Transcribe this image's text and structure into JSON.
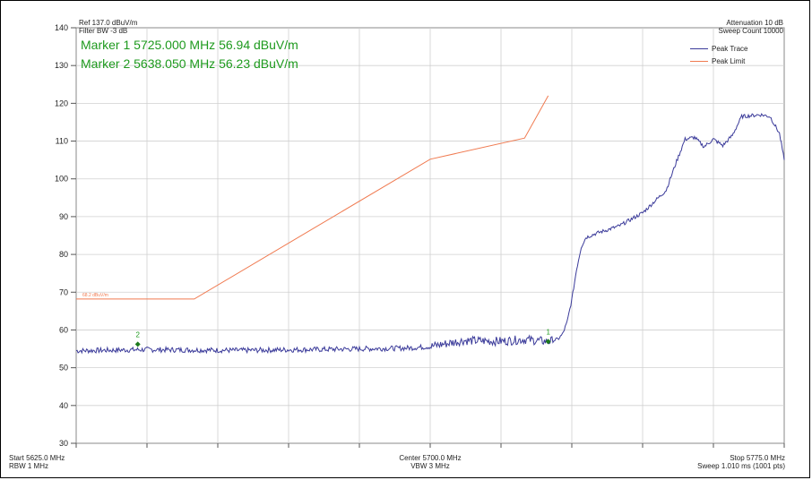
{
  "header": {
    "ref_level": "Ref 137.0 dBuV/m",
    "filter_bw": "Filter BW -3 dB",
    "attenuation": "Attenuation 10 dB",
    "sweep_count": "Sweep Count 10000"
  },
  "markers": [
    {
      "label": "Marker 1 5725.000 MHz 56.94 dBuV/m",
      "id": "1",
      "freq": 5725.0,
      "level": 56.94
    },
    {
      "label": "Marker 2 5638.050 MHz 56.23 dBuV/m",
      "id": "2",
      "freq": 5638.05,
      "level": 56.23
    }
  ],
  "legend": [
    {
      "name": "Peak Trace",
      "color": "#3b3b9a"
    },
    {
      "name": "Peak Limit",
      "color": "#f07a50"
    }
  ],
  "limit_label": "68.2 dBuV/m",
  "footer": {
    "start": "Start 5625.0 MHz",
    "rbw": "RBW 1 MHz",
    "center": "Center 5700.0 MHz",
    "vbw": "VBW 3 MHz",
    "stop": "Stop 5775.0 MHz",
    "sweep": "Sweep 1.010 ms (1001 pts)"
  },
  "chart_data": {
    "type": "line",
    "xlim": [
      5625.0,
      5775.0
    ],
    "ylim": [
      30,
      140
    ],
    "yticks": [
      30,
      40,
      50,
      60,
      70,
      80,
      90,
      100,
      110,
      120,
      130,
      140
    ],
    "grid": true,
    "legend_position": "top-right",
    "series": [
      {
        "name": "Peak Limit",
        "color": "#f07a50",
        "x": [
          5625.0,
          5650.0,
          5700.0,
          5720.0,
          5725.0
        ],
        "y": [
          68.2,
          68.2,
          105.2,
          110.8,
          122.0
        ]
      },
      {
        "name": "Peak Trace",
        "color": "#3b3b9a",
        "x": [
          5625.0,
          5640.0,
          5660.0,
          5680.0,
          5695.0,
          5700.0,
          5707.0,
          5715.0,
          5720.0,
          5725.0,
          5727.0,
          5728.0,
          5729.0,
          5730.0,
          5731.0,
          5732.0,
          5733.0,
          5735.0,
          5740.0,
          5745.0,
          5750.0,
          5752.0,
          5754.0,
          5756.0,
          5758.0,
          5760.0,
          5762.0,
          5764.0,
          5766.0,
          5770.0,
          5772.0,
          5774.0,
          5775.0
        ],
        "y": [
          54.5,
          54.8,
          54.6,
          54.9,
          55.2,
          55.6,
          57.2,
          57.0,
          57.5,
          56.9,
          57.5,
          58.8,
          62.0,
          68.0,
          76.0,
          82.0,
          84.5,
          85.5,
          87.5,
          91.0,
          97.0,
          104.0,
          110.5,
          111.0,
          108.5,
          110.5,
          108.8,
          111.5,
          116.5,
          117.0,
          116.5,
          112.0,
          105.0
        ]
      }
    ],
    "markers": [
      {
        "id": "1",
        "x": 5725.0,
        "y": 56.94
      },
      {
        "id": "2",
        "x": 5638.05,
        "y": 56.23
      }
    ]
  }
}
